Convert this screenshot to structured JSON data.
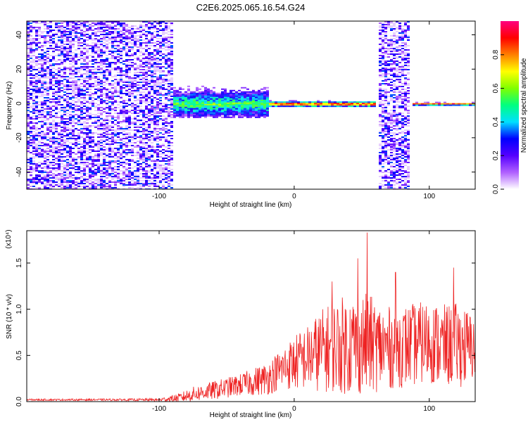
{
  "figure": {
    "title": "C2E6.2025.065.16.54.G24"
  },
  "chart_data": [
    {
      "type": "heatmap",
      "title": "C2E6.2025.065.16.54.G24",
      "xlabel": "Height of straight line (km)",
      "ylabel": "Frequency (Hz)",
      "xlim": [
        -198,
        134
      ],
      "ylim": [
        -50,
        48
      ],
      "x_ticks": [
        -100,
        0,
        100
      ],
      "x_tick_labels": [
        "-100",
        "0",
        "100"
      ],
      "y_ticks": [
        -40,
        -20,
        0,
        20,
        40
      ],
      "y_tick_labels": [
        "-40",
        "-20",
        "0",
        "20",
        "40"
      ],
      "grid": false,
      "colorbar": {
        "label": "Normalized spectral amplitude",
        "range": [
          0,
          1
        ],
        "ticks": [
          0.0,
          0.2,
          0.4,
          0.6,
          0.8
        ],
        "tick_labels": [
          "0.0",
          "0.2",
          "0.4",
          "0.6",
          "0.8"
        ],
        "colors": [
          "#ffffff",
          "#b060ff",
          "#5500ff",
          "#0000ff",
          "#00e0ff",
          "#00ff80",
          "#80ff00",
          "#ffff00",
          "#ff8000",
          "#ff0000",
          "#ff0080"
        ]
      },
      "regions": [
        {
          "x": [
            -198,
            -90
          ],
          "description": "broadband noise",
          "y_extent": [
            -50,
            48
          ]
        },
        {
          "x": [
            -90,
            -20
          ],
          "description": "widening signal",
          "y_extent": [
            -8,
            12
          ]
        },
        {
          "x": [
            -20,
            60
          ],
          "description": "narrow carrier",
          "y_extent": [
            -2,
            2
          ]
        },
        {
          "x": [
            61,
            84
          ],
          "description": "broadband noise",
          "y_extent": [
            -50,
            48
          ]
        },
        {
          "x": [
            87,
            134
          ],
          "description": "narrow carrier",
          "y_extent": [
            -1,
            1
          ]
        }
      ]
    },
    {
      "type": "line",
      "xlabel": "Height of straight line (km)",
      "ylabel": "SNR (10 * v/v)",
      "y_multiplier": "(x10⁴)",
      "xlim": [
        -198,
        134
      ],
      "ylim": [
        0,
        1.85
      ],
      "x_ticks": [
        -100,
        0,
        100
      ],
      "x_tick_labels": [
        "-100",
        "0",
        "100"
      ],
      "y_ticks": [
        0.0,
        0.5,
        1.0,
        1.5
      ],
      "y_tick_labels": [
        "0.0",
        "0.5",
        "1.0",
        "1.5"
      ],
      "grid": false,
      "color": "#ee2222",
      "envelope": {
        "x": [
          -198,
          -150,
          -100,
          -85,
          -75,
          -60,
          -40,
          -20,
          -10,
          0,
          10,
          20,
          30,
          40,
          50,
          55,
          60,
          70,
          80,
          90,
          100,
          110,
          120,
          125,
          130,
          134
        ],
        "mean": [
          0.02,
          0.02,
          0.02,
          0.04,
          0.08,
          0.12,
          0.18,
          0.25,
          0.35,
          0.42,
          0.48,
          0.55,
          0.6,
          0.62,
          0.62,
          0.63,
          0.6,
          0.58,
          0.6,
          0.62,
          0.65,
          0.6,
          0.62,
          0.6,
          0.58,
          0.6
        ],
        "spread": [
          0.01,
          0.01,
          0.015,
          0.05,
          0.08,
          0.1,
          0.12,
          0.18,
          0.22,
          0.3,
          0.35,
          0.45,
          0.5,
          0.55,
          0.55,
          0.55,
          0.5,
          0.45,
          0.45,
          0.45,
          0.45,
          0.45,
          0.45,
          0.45,
          0.4,
          0.35
        ]
      },
      "peaks": [
        {
          "x": 54,
          "y": 1.83
        },
        {
          "x": 47,
          "y": 1.55
        },
        {
          "x": 118,
          "y": 1.45
        },
        {
          "x": 75,
          "y": 1.4
        },
        {
          "x": 28,
          "y": 1.3
        }
      ]
    }
  ]
}
